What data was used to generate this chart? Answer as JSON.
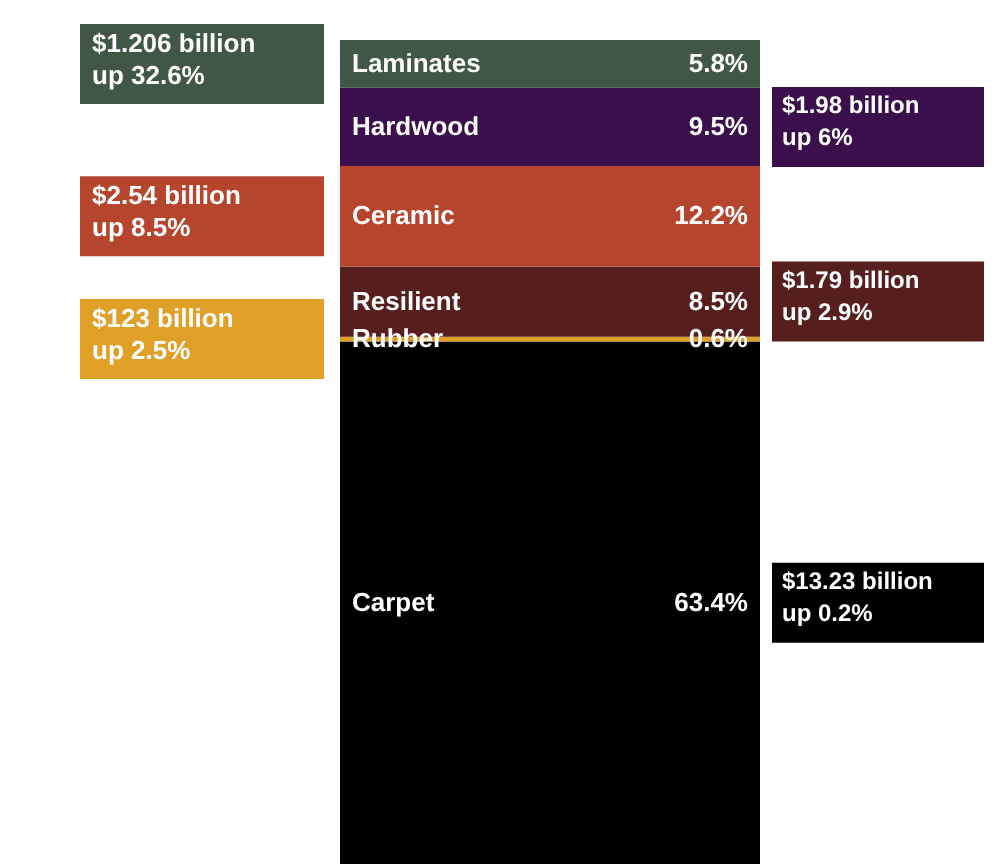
{
  "chart_data": {
    "type": "bar",
    "stacked": true,
    "categories": [
      null
    ],
    "series": [
      {
        "name": "Carpet",
        "color": "#000000",
        "values": [
          63.4
        ],
        "value_labels": [
          "63.4%"
        ]
      },
      {
        "name": "Rubber",
        "color": "#e09f26",
        "values": [
          0.6
        ],
        "value_labels": [
          "0.6%"
        ]
      },
      {
        "name": "Resilient",
        "color": "#561f1e",
        "values": [
          8.5
        ],
        "value_labels": [
          "8.5%"
        ]
      },
      {
        "name": "Ceramic",
        "color": "#b5452c",
        "values": [
          12.2
        ],
        "value_labels": [
          "12.2%"
        ]
      },
      {
        "name": "Hardwood",
        "color": "#3b0f4b",
        "values": [
          9.5
        ],
        "value_labels": [
          "9.5%"
        ]
      },
      {
        "name": "Laminates",
        "color": "#3f5744",
        "values": [
          5.8
        ],
        "value_labels": [
          "5.8%"
        ]
      }
    ],
    "annotations": [
      "$13.23 billion\nup 0.2%",
      "$123 billion\nup 2.5%",
      "$1.79 billion\nup 2.9%",
      "$2.54 billion\nup 8.5%",
      "$1.98 billion\nup 6%",
      "$1.206 billion\nup 32.6%"
    ]
  }
}
